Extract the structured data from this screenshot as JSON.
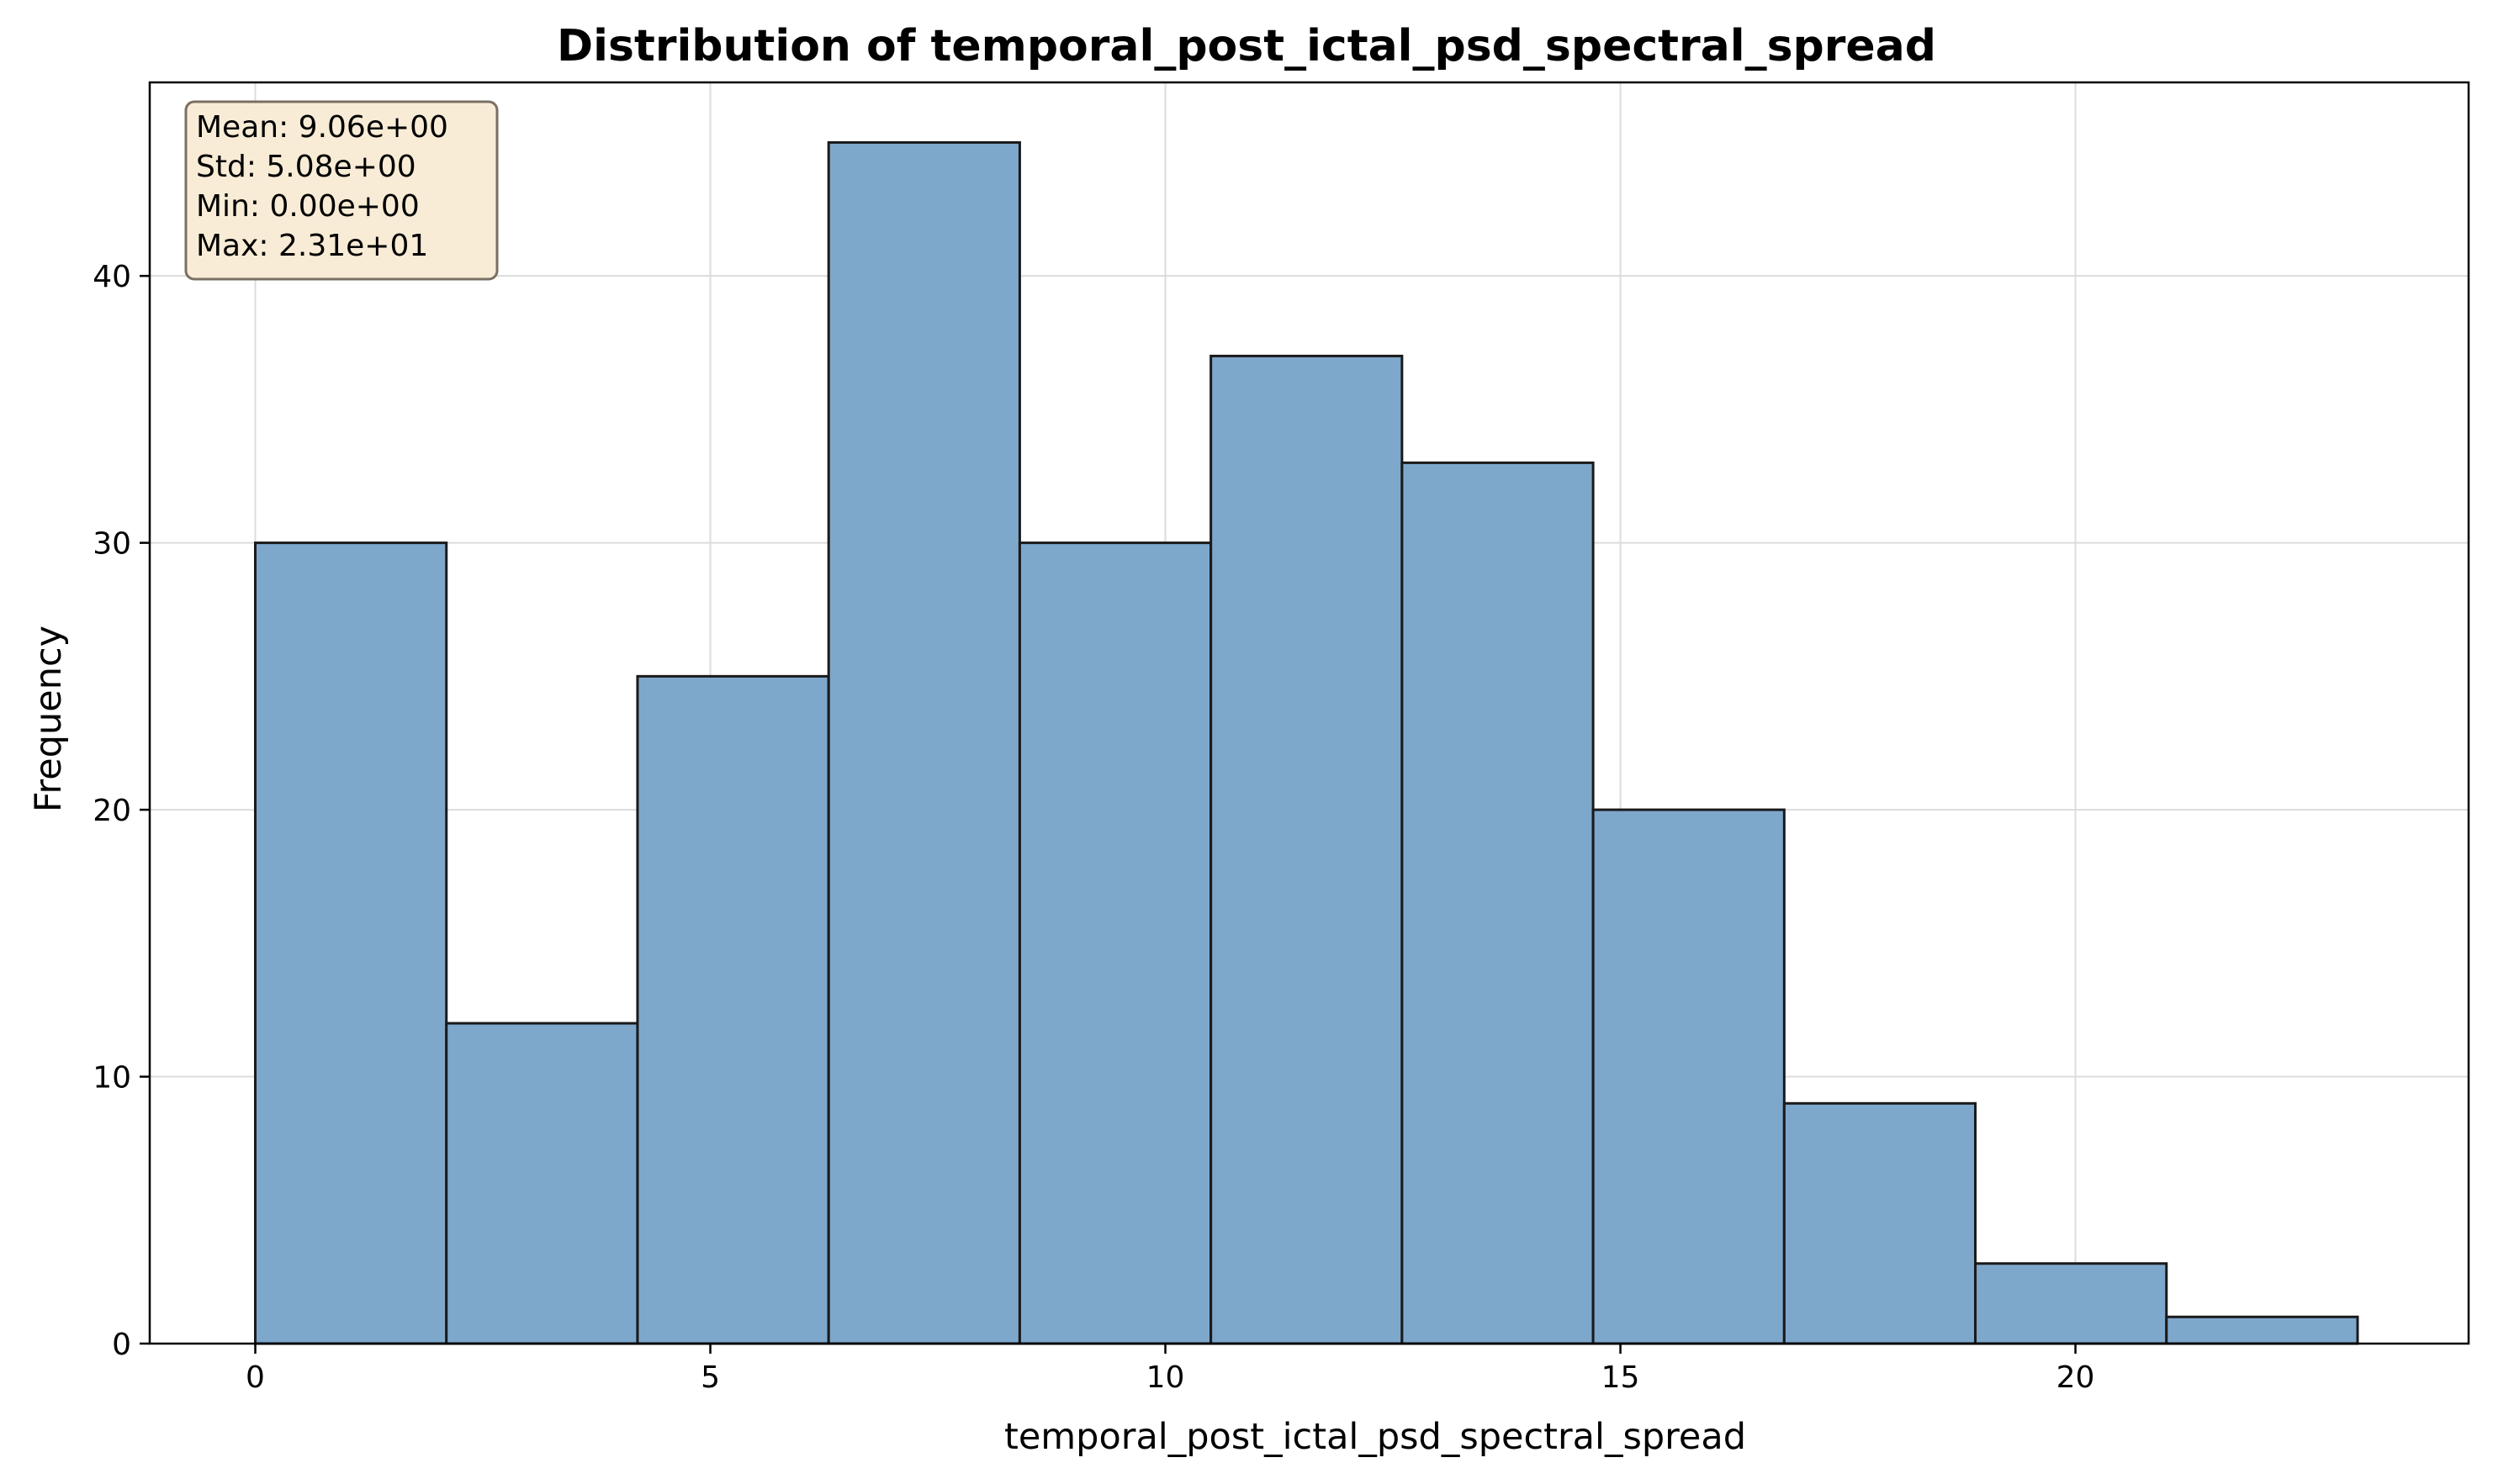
{
  "chart_data": {
    "type": "bar",
    "subtype": "histogram",
    "title": "Distribution of temporal_post_ictal_psd_spectral_spread",
    "xlabel": "temporal_post_ictal_psd_spectral_spread",
    "ylabel": "Frequency",
    "xlim": [
      -1.16,
      24.32
    ],
    "ylim": [
      0,
      47.25
    ],
    "xticks": [
      0,
      5,
      10,
      15,
      20
    ],
    "yticks": [
      0,
      10,
      20,
      30,
      40
    ],
    "bin_edges": [
      0.0,
      2.1,
      4.2,
      6.3,
      8.4,
      10.5,
      12.6,
      14.7,
      16.8,
      18.9,
      21.0,
      23.1
    ],
    "values": [
      30,
      12,
      25,
      45,
      30,
      37,
      33,
      20,
      9,
      3,
      1
    ],
    "bar_color": "#7ea7cc",
    "edge_color": "#1a1a1a",
    "grid": true,
    "stats_box": {
      "lines": [
        "Mean: 9.06e+00",
        "Std: 5.08e+00",
        "Min: 0.00e+00",
        "Max: 2.31e+01"
      ],
      "background": "#f8ecd6",
      "placement": "top-left"
    }
  }
}
